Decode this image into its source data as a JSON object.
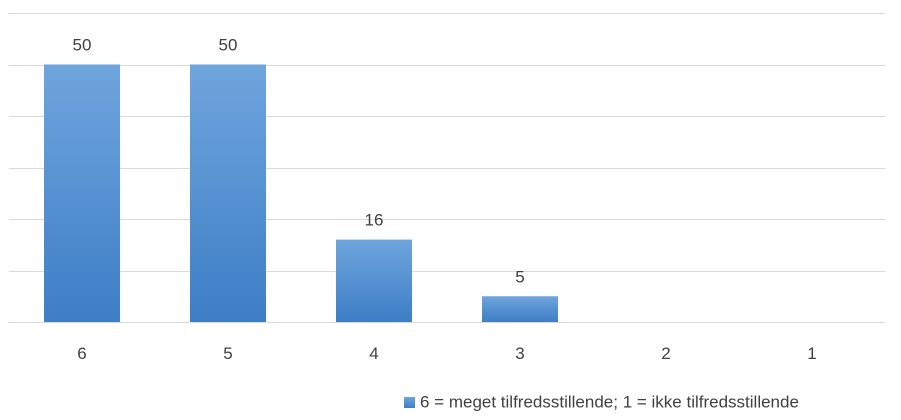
{
  "chart_data": {
    "type": "bar",
    "categories": [
      "6",
      "5",
      "4",
      "3",
      "2",
      "1"
    ],
    "values": [
      50,
      50,
      16,
      5,
      null,
      null
    ],
    "data_labels": [
      "50",
      "50",
      "16",
      "5",
      "",
      ""
    ],
    "series": [
      {
        "name": "6 = meget tilfredsstillende; 1 = ikke tilfredsstillende",
        "values": [
          50,
          50,
          16,
          5,
          null,
          null
        ]
      }
    ],
    "ylim": [
      0,
      60
    ],
    "grid": true,
    "legend": "bottom",
    "title": "",
    "xlabel": "",
    "ylabel": "",
    "colors": {
      "bar_top": "#6fa5dd",
      "bar_bottom": "#3d7ec6",
      "grid": "#d9d9d9",
      "text": "#404040"
    }
  }
}
